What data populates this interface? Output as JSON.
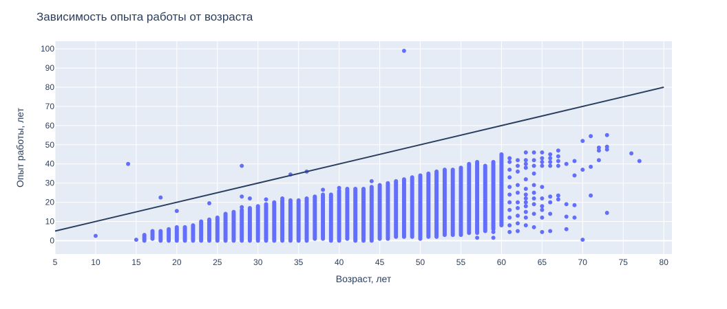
{
  "chart_data": {
    "type": "scatter",
    "title": "Зависимость опыта работы от возраста",
    "xlabel": "Возраст, лет",
    "ylabel": "Опыт работы, лет",
    "xlim": [
      5,
      81
    ],
    "ylim": [
      -7,
      104
    ],
    "xticks": [
      5,
      10,
      15,
      20,
      25,
      30,
      35,
      40,
      45,
      50,
      55,
      60,
      65,
      70,
      75,
      80
    ],
    "yticks": [
      0,
      10,
      20,
      30,
      40,
      50,
      60,
      70,
      80,
      90,
      100
    ],
    "grid": true,
    "colors": {
      "points": "#636efa",
      "line": "#2a3f5f",
      "plot_bg": "#e5ecf6",
      "grid": "#ffffff",
      "text": "#2a3f5f"
    },
    "reference_line": {
      "x": [
        5,
        80
      ],
      "y": [
        5,
        80
      ]
    },
    "column_ranges": [
      [
        16,
        0,
        3
      ],
      [
        17,
        1,
        5
      ],
      [
        18,
        0,
        5
      ],
      [
        19,
        0,
        6
      ],
      [
        20,
        0,
        7
      ],
      [
        21,
        0,
        7
      ],
      [
        22,
        0,
        8
      ],
      [
        23,
        0,
        10
      ],
      [
        24,
        0,
        11
      ],
      [
        25,
        0,
        12
      ],
      [
        26,
        0,
        14
      ],
      [
        27,
        0,
        15
      ],
      [
        28,
        0,
        16
      ],
      [
        29,
        0,
        17
      ],
      [
        30,
        0,
        18
      ],
      [
        31,
        0,
        19
      ],
      [
        32,
        0,
        20
      ],
      [
        33,
        0,
        21
      ],
      [
        34,
        0,
        21
      ],
      [
        35,
        0,
        21
      ],
      [
        36,
        0,
        22
      ],
      [
        37,
        1,
        23
      ],
      [
        38,
        1,
        24
      ],
      [
        39,
        0,
        24
      ],
      [
        40,
        0,
        26
      ],
      [
        41,
        1,
        27
      ],
      [
        42,
        0,
        27
      ],
      [
        43,
        0,
        27
      ],
      [
        44,
        0,
        28
      ],
      [
        45,
        1,
        29
      ],
      [
        46,
        1,
        30
      ],
      [
        47,
        2,
        31
      ],
      [
        48,
        2,
        32
      ],
      [
        49,
        2,
        33
      ],
      [
        50,
        1,
        34
      ],
      [
        51,
        2,
        35
      ],
      [
        52,
        2,
        36
      ],
      [
        53,
        3,
        37
      ],
      [
        54,
        3,
        37
      ],
      [
        55,
        3,
        38
      ],
      [
        56,
        4,
        40
      ],
      [
        57,
        4,
        41
      ],
      [
        58,
        5,
        39
      ],
      [
        59,
        6,
        41
      ],
      [
        60,
        8,
        45
      ]
    ],
    "points": [
      [
        10,
        2.5
      ],
      [
        14,
        40
      ],
      [
        15,
        0.5
      ],
      [
        18,
        22.5
      ],
      [
        20,
        15.5
      ],
      [
        24,
        19.5
      ],
      [
        28,
        39
      ],
      [
        28,
        23
      ],
      [
        29,
        22
      ],
      [
        28,
        17.5
      ],
      [
        31,
        21.5
      ],
      [
        33,
        22
      ],
      [
        34,
        34.5
      ],
      [
        36,
        36
      ],
      [
        38,
        26.5
      ],
      [
        40,
        27.5
      ],
      [
        44,
        31
      ],
      [
        48,
        99
      ],
      [
        50,
        1.5
      ],
      [
        57,
        1.5
      ],
      [
        57,
        4.5
      ],
      [
        59,
        1.5
      ],
      [
        59,
        4.5
      ],
      [
        57,
        8
      ],
      [
        59,
        8
      ],
      [
        61,
        4.5
      ],
      [
        61,
        8
      ],
      [
        61,
        12
      ],
      [
        61,
        16
      ],
      [
        61,
        20
      ],
      [
        61,
        24
      ],
      [
        61,
        28
      ],
      [
        61,
        33
      ],
      [
        61,
        37
      ],
      [
        61,
        41
      ],
      [
        61,
        43
      ],
      [
        62,
        5
      ],
      [
        62,
        9
      ],
      [
        62,
        13
      ],
      [
        62,
        17
      ],
      [
        62,
        20
      ],
      [
        62,
        25
      ],
      [
        62,
        29
      ],
      [
        62,
        36
      ],
      [
        62,
        39
      ],
      [
        62,
        42
      ],
      [
        63,
        8
      ],
      [
        63,
        12
      ],
      [
        63,
        15
      ],
      [
        63,
        18
      ],
      [
        63,
        20
      ],
      [
        63,
        22
      ],
      [
        63,
        24
      ],
      [
        63,
        27
      ],
      [
        63,
        32
      ],
      [
        63,
        38
      ],
      [
        63,
        40
      ],
      [
        63,
        42
      ],
      [
        63,
        46
      ],
      [
        64,
        7
      ],
      [
        64,
        14
      ],
      [
        64,
        19
      ],
      [
        64,
        22
      ],
      [
        64,
        25
      ],
      [
        64,
        29
      ],
      [
        64,
        35
      ],
      [
        64,
        39
      ],
      [
        64,
        42
      ],
      [
        64,
        46
      ],
      [
        65,
        4.5
      ],
      [
        65,
        12
      ],
      [
        65,
        16
      ],
      [
        65,
        18
      ],
      [
        65,
        22
      ],
      [
        65,
        28
      ],
      [
        65,
        39
      ],
      [
        65,
        41
      ],
      [
        65,
        43
      ],
      [
        65,
        46
      ],
      [
        66,
        5
      ],
      [
        66,
        14
      ],
      [
        66,
        20
      ],
      [
        66,
        23
      ],
      [
        66,
        39
      ],
      [
        66,
        41
      ],
      [
        66,
        43
      ],
      [
        66,
        45
      ],
      [
        67,
        21.5
      ],
      [
        67,
        23.5
      ],
      [
        67,
        39
      ],
      [
        67,
        41.5
      ],
      [
        67,
        44
      ],
      [
        67,
        47
      ],
      [
        68,
        6
      ],
      [
        68,
        12.5
      ],
      [
        68,
        19
      ],
      [
        68,
        40
      ],
      [
        69,
        12
      ],
      [
        69,
        18.5
      ],
      [
        69,
        34
      ],
      [
        69,
        41.5
      ],
      [
        70,
        0.5
      ],
      [
        70,
        37
      ],
      [
        70,
        52
      ],
      [
        71,
        23.5
      ],
      [
        71,
        38.5
      ],
      [
        71,
        54.5
      ],
      [
        72,
        42
      ],
      [
        72,
        47
      ],
      [
        72,
        48.5
      ],
      [
        73,
        14.5
      ],
      [
        73,
        47.5
      ],
      [
        73,
        49
      ],
      [
        73,
        55
      ],
      [
        76,
        45.5
      ],
      [
        77,
        41.5
      ]
    ]
  }
}
